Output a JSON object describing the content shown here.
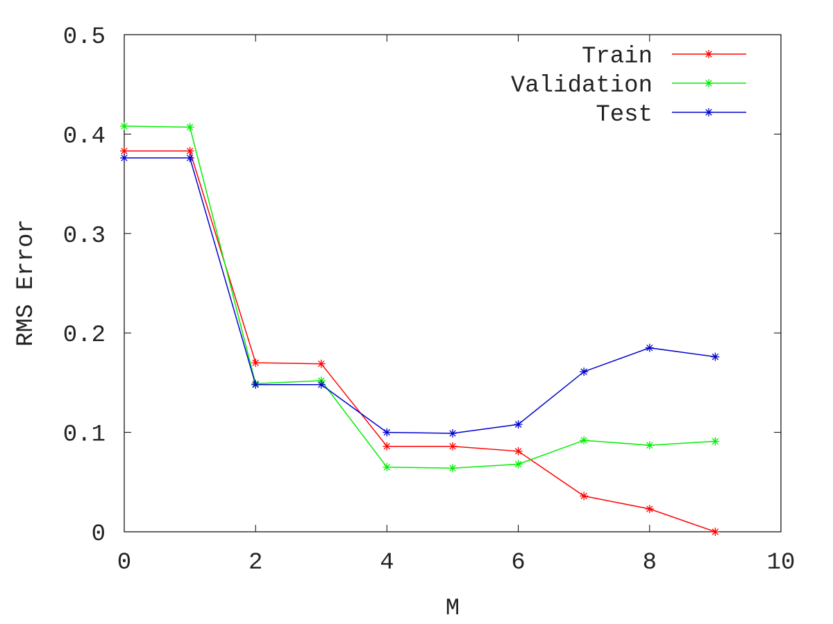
{
  "chart_data": {
    "type": "line",
    "title": "",
    "xlabel": "M",
    "ylabel": "RMS Error",
    "xlim": [
      0,
      10
    ],
    "ylim": [
      0,
      0.5
    ],
    "xticks": [
      0,
      2,
      4,
      6,
      8,
      10
    ],
    "xtick_labels": [
      "0",
      "2",
      "4",
      "6",
      "8",
      "10"
    ],
    "yticks": [
      0,
      0.1,
      0.2,
      0.3,
      0.4,
      0.5
    ],
    "ytick_labels": [
      "0",
      "0.1",
      "0.2",
      "0.3",
      "0.4",
      "0.5"
    ],
    "grid": false,
    "legend_position": "top-right",
    "marker": "asterisk",
    "x": [
      0,
      1,
      2,
      3,
      4,
      5,
      6,
      7,
      8,
      9
    ],
    "series": [
      {
        "name": "Train",
        "color": "#ff0000",
        "values": [
          0.383,
          0.383,
          0.17,
          0.169,
          0.086,
          0.086,
          0.081,
          0.036,
          0.023,
          0.0
        ]
      },
      {
        "name": "Validation",
        "color": "#00ee00",
        "values": [
          0.408,
          0.407,
          0.149,
          0.152,
          0.065,
          0.064,
          0.068,
          0.092,
          0.087,
          0.091
        ]
      },
      {
        "name": "Test",
        "color": "#0000cc",
        "values": [
          0.376,
          0.376,
          0.148,
          0.148,
          0.1,
          0.099,
          0.108,
          0.161,
          0.185,
          0.176
        ]
      }
    ]
  }
}
